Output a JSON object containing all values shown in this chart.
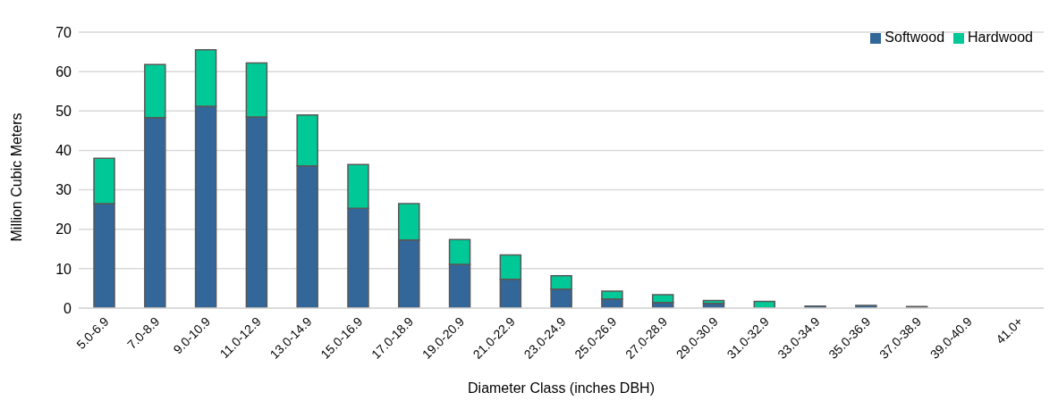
{
  "chart_data": {
    "type": "bar",
    "stacked": true,
    "xlabel": "Diameter Class (inches DBH)",
    "ylabel": "Million Cubic Meters",
    "categories": [
      "5.0-6.9",
      "7.0-8.9",
      "9.0-10.9",
      "11.0-12.9",
      "13.0-14.9",
      "15.0-16.9",
      "17.0-18.9",
      "19.0-20.9",
      "21.0-22.9",
      "23.0-24.9",
      "25.0-26.9",
      "27.0-28.9",
      "29.0-30.9",
      "31.0-32.9",
      "33.0-34.9",
      "35.0-36.9",
      "37.0-38.9",
      "39.0-40.9",
      "41.0+"
    ],
    "series": [
      {
        "name": "Softwood",
        "color": "#336699",
        "values": [
          26.5,
          48.3,
          51.2,
          48.5,
          36.1,
          25.3,
          17.3,
          11.1,
          7.3,
          4.8,
          2.3,
          1.4,
          1.2,
          null,
          0.5,
          0.7,
          0.4,
          0,
          0
        ]
      },
      {
        "name": "Hardwood",
        "color": "#00c896",
        "values": [
          11.5,
          13.5,
          14.3,
          13.7,
          12.9,
          11.1,
          9.2,
          6.3,
          6.2,
          3.4,
          2.0,
          2.0,
          0.7,
          1.7,
          null,
          null,
          null,
          0,
          0
        ]
      }
    ],
    "ylim": [
      0,
      70
    ],
    "yticks": [
      0,
      10,
      20,
      30,
      40,
      50,
      60,
      70
    ],
    "grid": "y",
    "legend": "top right"
  }
}
